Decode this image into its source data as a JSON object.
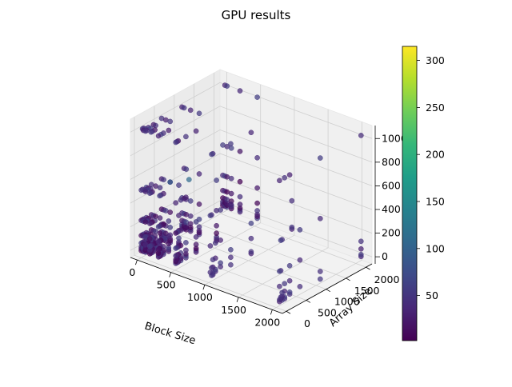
{
  "chart_data": {
    "type": "scatter3d",
    "title": "GPU results",
    "xlabel": "Block Size",
    "ylabel": "Array Size",
    "zlabel": "",
    "xlim": [
      -100,
      2150
    ],
    "ylim": [
      -100,
      2150
    ],
    "zlim": [
      -60,
      1110
    ],
    "x_ticks": [
      0,
      500,
      1000,
      1500,
      2000
    ],
    "y_ticks": [
      0,
      500,
      1000,
      1500,
      2000
    ],
    "z_ticks": [
      0,
      200,
      400,
      600,
      800,
      1000
    ],
    "colorbar": {
      "colormap": "viridis",
      "range": [
        2,
        315
      ],
      "ticks": [
        50,
        100,
        150,
        200,
        250,
        300
      ]
    },
    "grid": true,
    "series": [
      {
        "block_sizes": [
          1,
          32,
          64,
          128,
          256,
          512,
          1024,
          2048
        ],
        "array_sizes": [
          1,
          32,
          64,
          128,
          256,
          512,
          1024,
          2048
        ],
        "layers": [
          0,
          16,
          32,
          64,
          128,
          256,
          512,
          1024
        ],
        "value_range": [
          2,
          60
        ],
        "outlier_values": [
          95,
          110
        ]
      }
    ]
  }
}
